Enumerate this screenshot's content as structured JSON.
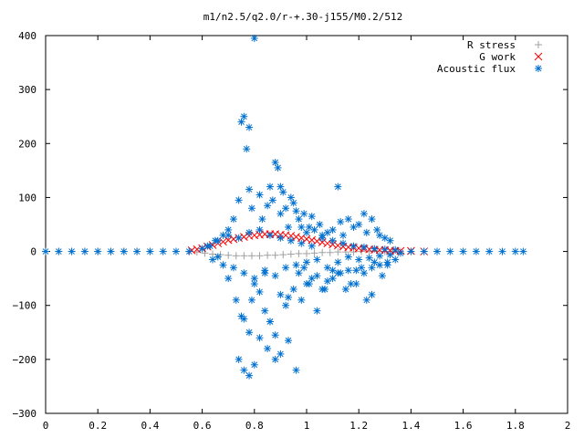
{
  "chart_data": {
    "type": "scatter",
    "title": "m1/n2.5/q2.0/r-+.30-j155/M0.2/512",
    "xlabel": "",
    "ylabel": "",
    "xlim": [
      0,
      2
    ],
    "ylim": [
      -300,
      400
    ],
    "x_ticks": [
      "0",
      "0.2",
      "0.4",
      "0.6",
      "0.8",
      "1",
      "1.2",
      "1.4",
      "1.6",
      "1.8",
      "2"
    ],
    "y_ticks": [
      "400",
      "300",
      "200",
      "100",
      "0",
      "−100",
      "−200",
      "−300"
    ],
    "x_tick_values": [
      0,
      0.2,
      0.4,
      0.6,
      0.8,
      1.0,
      1.2,
      1.4,
      1.6,
      1.8,
      2.0
    ],
    "y_tick_values": [
      400,
      300,
      200,
      100,
      0,
      -100,
      -200,
      -300
    ],
    "grid": false,
    "legend_position": "top-right",
    "series": [
      {
        "name": "R stress",
        "marker": "plus",
        "color": "#a0a0a0",
        "x": [
          0.0,
          0.05,
          0.1,
          0.15,
          0.2,
          0.25,
          0.3,
          0.35,
          0.4,
          0.45,
          0.5,
          0.55,
          0.58,
          0.61,
          0.64,
          0.67,
          0.7,
          0.73,
          0.76,
          0.79,
          0.82,
          0.85,
          0.88,
          0.91,
          0.94,
          0.97,
          1.0,
          1.03,
          1.06,
          1.09,
          1.12,
          1.15,
          1.18,
          1.21,
          1.24,
          1.27,
          1.3,
          1.33,
          1.36,
          1.4,
          1.45,
          1.5
        ],
        "y": [
          0,
          0,
          0,
          0,
          0,
          0,
          0,
          0,
          0,
          0,
          0,
          0,
          -1,
          -3,
          -5,
          -6,
          -7,
          -8,
          -8,
          -8,
          -8,
          -7,
          -7,
          -6,
          -5,
          -4,
          -4,
          -3,
          -2,
          -2,
          -1,
          -1,
          -1,
          0,
          0,
          0,
          0,
          0,
          0,
          0,
          0,
          0
        ]
      },
      {
        "name": "G work",
        "marker": "cross",
        "color": "#ff0000",
        "x": [
          0.56,
          0.58,
          0.6,
          0.62,
          0.64,
          0.66,
          0.68,
          0.7,
          0.72,
          0.74,
          0.76,
          0.78,
          0.8,
          0.82,
          0.84,
          0.86,
          0.88,
          0.9,
          0.92,
          0.94,
          0.96,
          0.98,
          1.0,
          1.02,
          1.04,
          1.06,
          1.08,
          1.1,
          1.12,
          1.14,
          1.16,
          1.18,
          1.2,
          1.22,
          1.24,
          1.26,
          1.28,
          1.3,
          1.32,
          1.34,
          1.36,
          1.4,
          1.45
        ],
        "y": [
          2,
          4,
          6,
          9,
          12,
          15,
          18,
          21,
          23,
          25,
          27,
          29,
          30,
          31,
          32,
          32,
          32,
          31,
          30,
          29,
          27,
          25,
          23,
          21,
          19,
          17,
          15,
          13,
          11,
          9,
          8,
          7,
          6,
          5,
          4,
          3,
          3,
          2,
          2,
          1,
          1,
          1,
          0
        ]
      },
      {
        "name": "Acoustic flux",
        "marker": "star",
        "color": "#0070d0",
        "x": [
          0.0,
          0.05,
          0.1,
          0.15,
          0.2,
          0.25,
          0.3,
          0.35,
          0.4,
          0.45,
          0.5,
          0.55,
          1.4,
          1.45,
          1.5,
          1.55,
          1.6,
          1.65,
          1.7,
          1.75,
          1.8,
          1.83,
          0.6,
          0.63,
          0.65,
          0.68,
          0.7,
          0.72,
          0.74,
          0.75,
          0.76,
          0.77,
          0.78,
          0.78,
          0.79,
          0.8,
          0.82,
          0.83,
          0.85,
          0.86,
          0.87,
          0.88,
          0.89,
          0.9,
          0.9,
          0.91,
          0.92,
          0.93,
          0.94,
          0.95,
          0.96,
          0.97,
          0.98,
          0.99,
          1.0,
          1.01,
          1.02,
          1.03,
          1.05,
          1.06,
          1.08,
          1.1,
          1.12,
          1.13,
          1.14,
          1.16,
          1.18,
          1.2,
          1.22,
          1.23,
          1.25,
          1.27,
          1.28,
          1.3,
          1.32,
          0.66,
          0.7,
          0.73,
          0.75,
          0.76,
          0.78,
          0.79,
          0.8,
          0.82,
          0.84,
          0.85,
          0.86,
          0.88,
          0.9,
          0.92,
          0.93,
          0.95,
          0.97,
          0.99,
          1.0,
          1.02,
          1.04,
          1.06,
          1.08,
          1.1,
          1.12,
          1.15,
          1.17,
          1.19,
          1.21,
          1.23,
          1.25,
          1.26,
          1.29,
          1.31,
          0.74,
          0.76,
          0.78,
          0.8,
          0.82,
          0.84,
          0.86,
          0.88,
          0.9,
          0.93,
          0.96,
          0.98,
          1.01,
          1.04,
          1.07,
          1.1,
          1.13,
          1.16,
          1.19,
          1.22,
          1.25,
          1.28,
          1.31,
          1.34,
          0.62,
          0.64,
          0.66,
          0.68,
          0.7,
          0.72,
          0.74,
          0.76,
          0.78,
          0.8,
          0.82,
          0.84,
          0.86,
          0.88,
          0.9,
          0.92,
          0.94,
          0.96,
          0.98,
          1.0,
          1.02,
          1.04,
          1.06,
          1.08,
          1.1,
          1.12,
          1.14,
          1.16,
          1.18,
          1.2,
          1.22,
          1.24,
          1.26,
          1.28,
          1.3,
          1.32,
          1.34,
          1.36
        ],
        "y": [
          0,
          0,
          0,
          0,
          0,
          0,
          0,
          0,
          0,
          0,
          0,
          0,
          0,
          0,
          0,
          0,
          0,
          0,
          0,
          0,
          0,
          0,
          5,
          10,
          20,
          30,
          40,
          60,
          95,
          240,
          250,
          190,
          230,
          115,
          80,
          395,
          105,
          60,
          85,
          120,
          95,
          165,
          155,
          120,
          70,
          110,
          80,
          45,
          100,
          90,
          75,
          60,
          45,
          70,
          35,
          45,
          65,
          40,
          50,
          30,
          35,
          40,
          120,
          55,
          30,
          60,
          45,
          50,
          70,
          35,
          60,
          40,
          30,
          25,
          20,
          -10,
          -50,
          -90,
          -120,
          -125,
          -150,
          -90,
          -60,
          -75,
          -40,
          -180,
          -130,
          -200,
          -190,
          -100,
          -85,
          -70,
          -40,
          -30,
          -60,
          -50,
          -110,
          -70,
          -55,
          -35,
          -40,
          -70,
          -60,
          -35,
          -30,
          -90,
          -80,
          -20,
          -45,
          -25,
          -200,
          -220,
          -230,
          -210,
          -160,
          -110,
          -130,
          -155,
          -80,
          -165,
          -220,
          -90,
          -60,
          -45,
          -70,
          -50,
          -40,
          -35,
          -60,
          -40,
          -30,
          -25,
          -20,
          -15,
          10,
          -15,
          20,
          -25,
          30,
          -30,
          25,
          -40,
          35,
          -50,
          40,
          -35,
          30,
          -45,
          25,
          -30,
          20,
          -25,
          15,
          -20,
          10,
          -15,
          25,
          -30,
          20,
          -20,
          15,
          -10,
          10,
          -15,
          8,
          -12,
          5,
          -8,
          4,
          -6,
          3,
          -3
        ]
      }
    ]
  }
}
